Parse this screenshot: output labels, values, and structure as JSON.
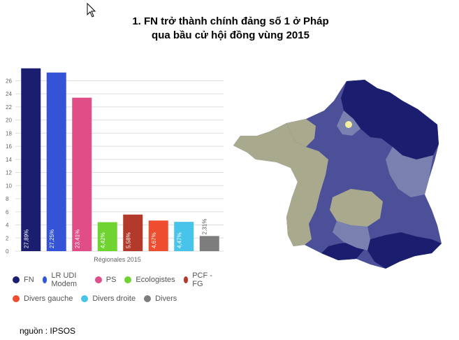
{
  "header": {
    "title_line1": "1.  FN trở thành chính đảng số 1 ở Pháp",
    "title_line2": "qua bầu cử hội đồng vùng 2015"
  },
  "chart_data": {
    "type": "bar",
    "categories": [
      "FN",
      "LR UDI Modem",
      "PS",
      "Ecologistes",
      "PCF - FG",
      "Divers gauche",
      "Divers droite",
      "Divers"
    ],
    "values": [
      27.89,
      27.25,
      23.41,
      4.42,
      5.58,
      4.67,
      4.47,
      2.31
    ],
    "data_labels": [
      "27,89%",
      "27,25%",
      "23,41%",
      "4,42%",
      "5,58%",
      "4,67%",
      "4,47%",
      "2,31%"
    ],
    "colors": [
      "#1b1e6e",
      "#3553d6",
      "#e04d87",
      "#6fd431",
      "#b33a2a",
      "#ee4d2f",
      "#48c4ea",
      "#7d7d7d"
    ],
    "xlabel": "Régionales 2015",
    "ylim": [
      0,
      27
    ],
    "yticks": [
      "0",
      "2",
      "4",
      "6",
      "8",
      "10",
      "12",
      "14",
      "16",
      "18",
      "20",
      "22",
      "24",
      "26"
    ],
    "grid": true,
    "legend_position": "bottom"
  },
  "map": {
    "colors": [
      "#1b1e6e",
      "#4b5099",
      "#7a80b0",
      "#a9a98e",
      "#f5f0a0"
    ]
  },
  "source": "nguồn : IPSOS",
  "icons": [
    "cursor-icon"
  ]
}
